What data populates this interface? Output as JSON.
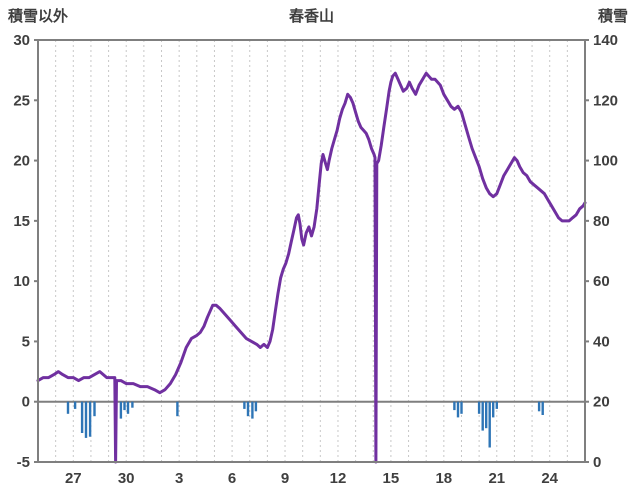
{
  "chart_data": {
    "type": "line",
    "title": "春香山",
    "legend": "none",
    "grid": "vertical-dashed-daily",
    "colors": {
      "snow_line": "#7030a0",
      "bars": "#2e75b6",
      "axis": "#7f7f7f",
      "grid": "#c8c8c8",
      "text": "#3f3f3f",
      "background": "#ffffff"
    },
    "left_axis": {
      "label": "積雪以外",
      "min": -5,
      "max": 30,
      "tick_values": [
        30,
        25,
        20,
        15,
        10,
        5,
        0,
        -5
      ]
    },
    "right_axis": {
      "label": "積雪",
      "min": 0,
      "max": 140,
      "tick_values": [
        140,
        120,
        100,
        80,
        60,
        40,
        20,
        0
      ]
    },
    "x_axis": {
      "unit": "day",
      "domain": [
        -1,
        30
      ],
      "grid_interval_days": 1,
      "tick_positions": [
        1,
        4,
        7,
        10,
        13,
        16,
        19,
        22,
        25,
        28
      ],
      "tick_labels": [
        "27",
        "30",
        "3",
        "6",
        "9",
        "12",
        "15",
        "18",
        "21",
        "24"
      ]
    },
    "zero_line_left": 0,
    "series": [
      {
        "name": "積雪",
        "axis": "right",
        "style": "line",
        "color": "#7030a0",
        "points": [
          [
            -1,
            27
          ],
          [
            -0.7,
            28
          ],
          [
            -0.4,
            28
          ],
          [
            -0.1,
            29
          ],
          [
            0.15,
            30
          ],
          [
            0.4,
            29
          ],
          [
            0.7,
            28
          ],
          [
            1,
            28
          ],
          [
            1.3,
            27
          ],
          [
            1.6,
            28
          ],
          [
            1.9,
            28
          ],
          [
            2.2,
            29
          ],
          [
            2.5,
            30
          ],
          [
            2.7,
            29
          ],
          [
            2.9,
            28
          ],
          [
            3.1,
            28
          ],
          [
            3.35,
            28
          ],
          [
            3.4,
            0
          ],
          [
            3.45,
            27
          ],
          [
            3.7,
            27
          ],
          [
            4,
            26
          ],
          [
            4.4,
            26
          ],
          [
            4.8,
            25
          ],
          [
            5.2,
            25
          ],
          [
            5.6,
            24
          ],
          [
            5.9,
            23
          ],
          [
            6.2,
            24
          ],
          [
            6.5,
            26
          ],
          [
            6.8,
            29
          ],
          [
            7.1,
            33
          ],
          [
            7.4,
            38
          ],
          [
            7.7,
            41
          ],
          [
            8,
            42
          ],
          [
            8.2,
            43
          ],
          [
            8.4,
            45
          ],
          [
            8.6,
            48
          ],
          [
            8.9,
            52
          ],
          [
            9.1,
            52
          ],
          [
            9.3,
            51
          ],
          [
            9.6,
            49
          ],
          [
            9.9,
            47
          ],
          [
            10.2,
            45
          ],
          [
            10.5,
            43
          ],
          [
            10.8,
            41
          ],
          [
            11.1,
            40
          ],
          [
            11.4,
            39
          ],
          [
            11.6,
            38
          ],
          [
            11.8,
            39
          ],
          [
            12,
            38
          ],
          [
            12.15,
            40
          ],
          [
            12.3,
            44
          ],
          [
            12.45,
            50
          ],
          [
            12.6,
            56
          ],
          [
            12.75,
            61
          ],
          [
            12.9,
            64
          ],
          [
            13.05,
            66
          ],
          [
            13.2,
            69
          ],
          [
            13.35,
            73
          ],
          [
            13.5,
            77
          ],
          [
            13.65,
            81
          ],
          [
            13.75,
            82
          ],
          [
            13.85,
            79
          ],
          [
            13.95,
            74
          ],
          [
            14.05,
            72
          ],
          [
            14.2,
            76
          ],
          [
            14.35,
            78
          ],
          [
            14.5,
            75
          ],
          [
            14.65,
            78
          ],
          [
            14.8,
            84
          ],
          [
            14.95,
            93
          ],
          [
            15.05,
            99
          ],
          [
            15.15,
            102
          ],
          [
            15.3,
            99
          ],
          [
            15.4,
            97
          ],
          [
            15.5,
            100
          ],
          [
            15.65,
            104
          ],
          [
            15.8,
            107
          ],
          [
            15.95,
            110
          ],
          [
            16.1,
            114
          ],
          [
            16.25,
            117
          ],
          [
            16.4,
            119
          ],
          [
            16.55,
            122
          ],
          [
            16.7,
            121
          ],
          [
            16.85,
            119
          ],
          [
            17,
            116
          ],
          [
            17.15,
            113
          ],
          [
            17.3,
            111
          ],
          [
            17.45,
            110
          ],
          [
            17.6,
            109
          ],
          [
            17.75,
            107
          ],
          [
            17.9,
            104
          ],
          [
            18.05,
            102
          ],
          [
            18.1,
            101
          ],
          [
            18.15,
            0
          ],
          [
            18.2,
            99
          ],
          [
            18.3,
            100
          ],
          [
            18.45,
            105
          ],
          [
            18.6,
            111
          ],
          [
            18.75,
            117
          ],
          [
            18.9,
            123
          ],
          [
            19,
            126
          ],
          [
            19.1,
            128
          ],
          [
            19.25,
            129
          ],
          [
            19.4,
            127
          ],
          [
            19.55,
            125
          ],
          [
            19.7,
            123
          ],
          [
            19.9,
            124
          ],
          [
            20.05,
            126
          ],
          [
            20.2,
            124
          ],
          [
            20.4,
            122
          ],
          [
            20.6,
            125
          ],
          [
            20.8,
            127
          ],
          [
            21,
            129
          ],
          [
            21.15,
            128
          ],
          [
            21.3,
            127
          ],
          [
            21.5,
            127
          ],
          [
            21.65,
            126
          ],
          [
            21.8,
            125
          ],
          [
            22,
            122
          ],
          [
            22.2,
            120
          ],
          [
            22.4,
            118
          ],
          [
            22.6,
            117
          ],
          [
            22.8,
            118
          ],
          [
            23,
            116
          ],
          [
            23.2,
            112
          ],
          [
            23.4,
            108
          ],
          [
            23.6,
            104
          ],
          [
            23.8,
            101
          ],
          [
            24,
            98
          ],
          [
            24.2,
            94
          ],
          [
            24.4,
            91
          ],
          [
            24.6,
            89
          ],
          [
            24.8,
            88
          ],
          [
            25,
            89
          ],
          [
            25.2,
            92
          ],
          [
            25.4,
            95
          ],
          [
            25.6,
            97
          ],
          [
            25.8,
            99
          ],
          [
            26,
            101
          ],
          [
            26.15,
            100
          ],
          [
            26.3,
            98
          ],
          [
            26.5,
            96
          ],
          [
            26.7,
            95
          ],
          [
            26.9,
            93
          ],
          [
            27.1,
            92
          ],
          [
            27.3,
            91
          ],
          [
            27.5,
            90
          ],
          [
            27.7,
            89
          ],
          [
            27.9,
            87
          ],
          [
            28.1,
            85
          ],
          [
            28.3,
            83
          ],
          [
            28.5,
            81
          ],
          [
            28.7,
            80
          ],
          [
            28.9,
            80
          ],
          [
            29.1,
            80
          ],
          [
            29.3,
            81
          ],
          [
            29.5,
            82
          ],
          [
            29.7,
            84
          ],
          [
            29.9,
            85
          ],
          [
            30,
            86
          ]
        ]
      },
      {
        "name": "積雪以外",
        "axis": "left",
        "style": "bar",
        "color": "#2e75b6",
        "points": [
          [
            0.7,
            -1
          ],
          [
            1.1,
            -0.6
          ],
          [
            1.5,
            -2.6
          ],
          [
            1.72,
            -3
          ],
          [
            1.95,
            -2.9
          ],
          [
            2.2,
            -1.2
          ],
          [
            3.7,
            -1.4
          ],
          [
            3.9,
            -0.7
          ],
          [
            4.1,
            -1
          ],
          [
            4.35,
            -0.5
          ],
          [
            6.9,
            -1.2
          ],
          [
            10.7,
            -0.6
          ],
          [
            10.9,
            -1.2
          ],
          [
            11.15,
            -1.4
          ],
          [
            11.35,
            -0.8
          ],
          [
            22.6,
            -0.7
          ],
          [
            22.8,
            -1.3
          ],
          [
            23,
            -1
          ],
          [
            24,
            -1
          ],
          [
            24.2,
            -2.4
          ],
          [
            24.4,
            -2.2
          ],
          [
            24.6,
            -3.8
          ],
          [
            24.8,
            -1.3
          ],
          [
            25,
            -0.6
          ],
          [
            27.4,
            -0.8
          ],
          [
            27.6,
            -1.1
          ]
        ]
      }
    ]
  }
}
